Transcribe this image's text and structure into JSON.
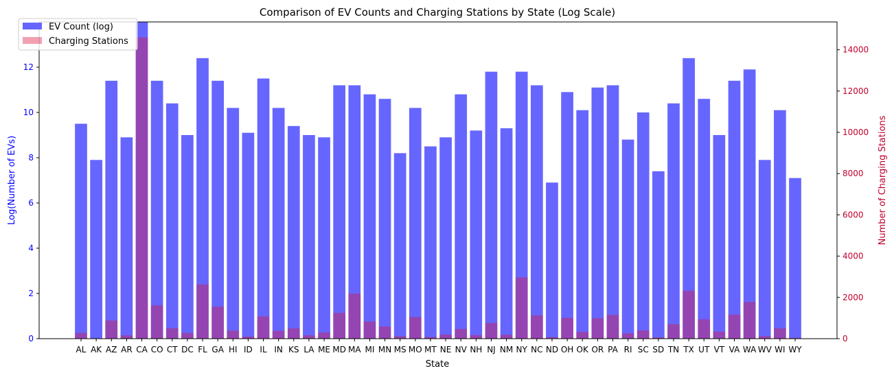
{
  "chart_data": {
    "type": "bar",
    "title": "Comparison of EV Counts and Charging Stations by State (Log Scale)",
    "xlabel": "State",
    "ylabel_left": "Log(Number of EVs)",
    "ylabel_right": "Number of Charging Stations",
    "categories": [
      "AL",
      "AK",
      "AZ",
      "AR",
      "CA",
      "CO",
      "CT",
      "DC",
      "FL",
      "GA",
      "HI",
      "ID",
      "IL",
      "IN",
      "KS",
      "LA",
      "ME",
      "MD",
      "MA",
      "MI",
      "MN",
      "MS",
      "MO",
      "MT",
      "NE",
      "NV",
      "NH",
      "NJ",
      "NM",
      "NY",
      "NC",
      "ND",
      "OH",
      "OK",
      "OR",
      "PA",
      "RI",
      "SC",
      "SD",
      "TN",
      "TX",
      "UT",
      "VT",
      "VA",
      "WA",
      "WV",
      "WI",
      "WY"
    ],
    "series": [
      {
        "name": "EV Count (log)",
        "axis": "left",
        "color": "#6666ff",
        "values": [
          9.5,
          7.9,
          11.4,
          8.9,
          14.0,
          11.4,
          10.4,
          9.0,
          12.4,
          11.4,
          10.2,
          9.1,
          11.5,
          10.2,
          9.4,
          9.0,
          8.9,
          11.2,
          11.2,
          10.8,
          10.6,
          8.2,
          10.2,
          8.5,
          8.9,
          10.8,
          9.2,
          11.8,
          9.3,
          11.8,
          11.2,
          6.9,
          10.9,
          10.1,
          11.1,
          11.2,
          8.8,
          10.0,
          7.4,
          10.4,
          12.4,
          10.6,
          9.0,
          11.4,
          11.9,
          7.9,
          10.1,
          7.1
        ]
      },
      {
        "name": "Charging Stations",
        "axis": "right",
        "color": "#dc143c",
        "values": [
          280,
          20,
          880,
          160,
          14600,
          1610,
          510,
          280,
          2630,
          1550,
          390,
          100,
          1080,
          380,
          500,
          160,
          300,
          1250,
          2180,
          830,
          590,
          120,
          1050,
          80,
          200,
          470,
          170,
          760,
          190,
          2970,
          1130,
          70,
          1010,
          330,
          990,
          1150,
          260,
          400,
          60,
          700,
          2320,
          940,
          340,
          1160,
          1780,
          120,
          500,
          40
        ]
      }
    ],
    "ylim_left": [
      0,
      14
    ],
    "ylim_right": [
      0,
      15350
    ],
    "yticks_left": [
      0,
      2,
      4,
      6,
      8,
      10,
      12
    ],
    "yticks_right": [
      0,
      2000,
      4000,
      6000,
      8000,
      10000,
      12000,
      14000
    ],
    "left_tick_color": "#0000ff",
    "right_tick_color": "#c0002c",
    "grid": false,
    "legend_position": "upper-left"
  }
}
